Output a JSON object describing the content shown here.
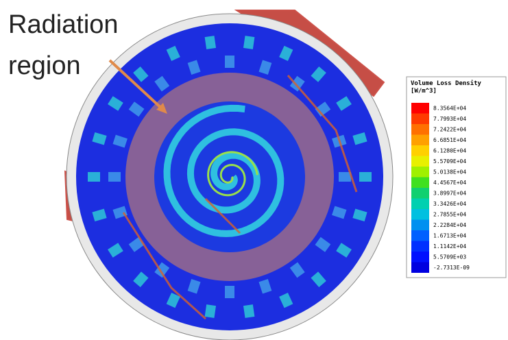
{
  "annotation": "Radiation region",
  "legend": {
    "title": "Volume Loss Density",
    "unit": "[W/m^3]",
    "labels": [
      "8.3564E+04",
      "7.7993E+04",
      "7.2422E+04",
      "6.6851E+04",
      "6.1280E+04",
      "5.5709E+04",
      "5.0138E+04",
      "4.4567E+04",
      "3.8997E+04",
      "3.3426E+04",
      "2.7855E+04",
      "2.2284E+04",
      "1.6713E+04",
      "1.1142E+04",
      "5.5709E+03",
      "-2.7313E-09"
    ]
  }
}
